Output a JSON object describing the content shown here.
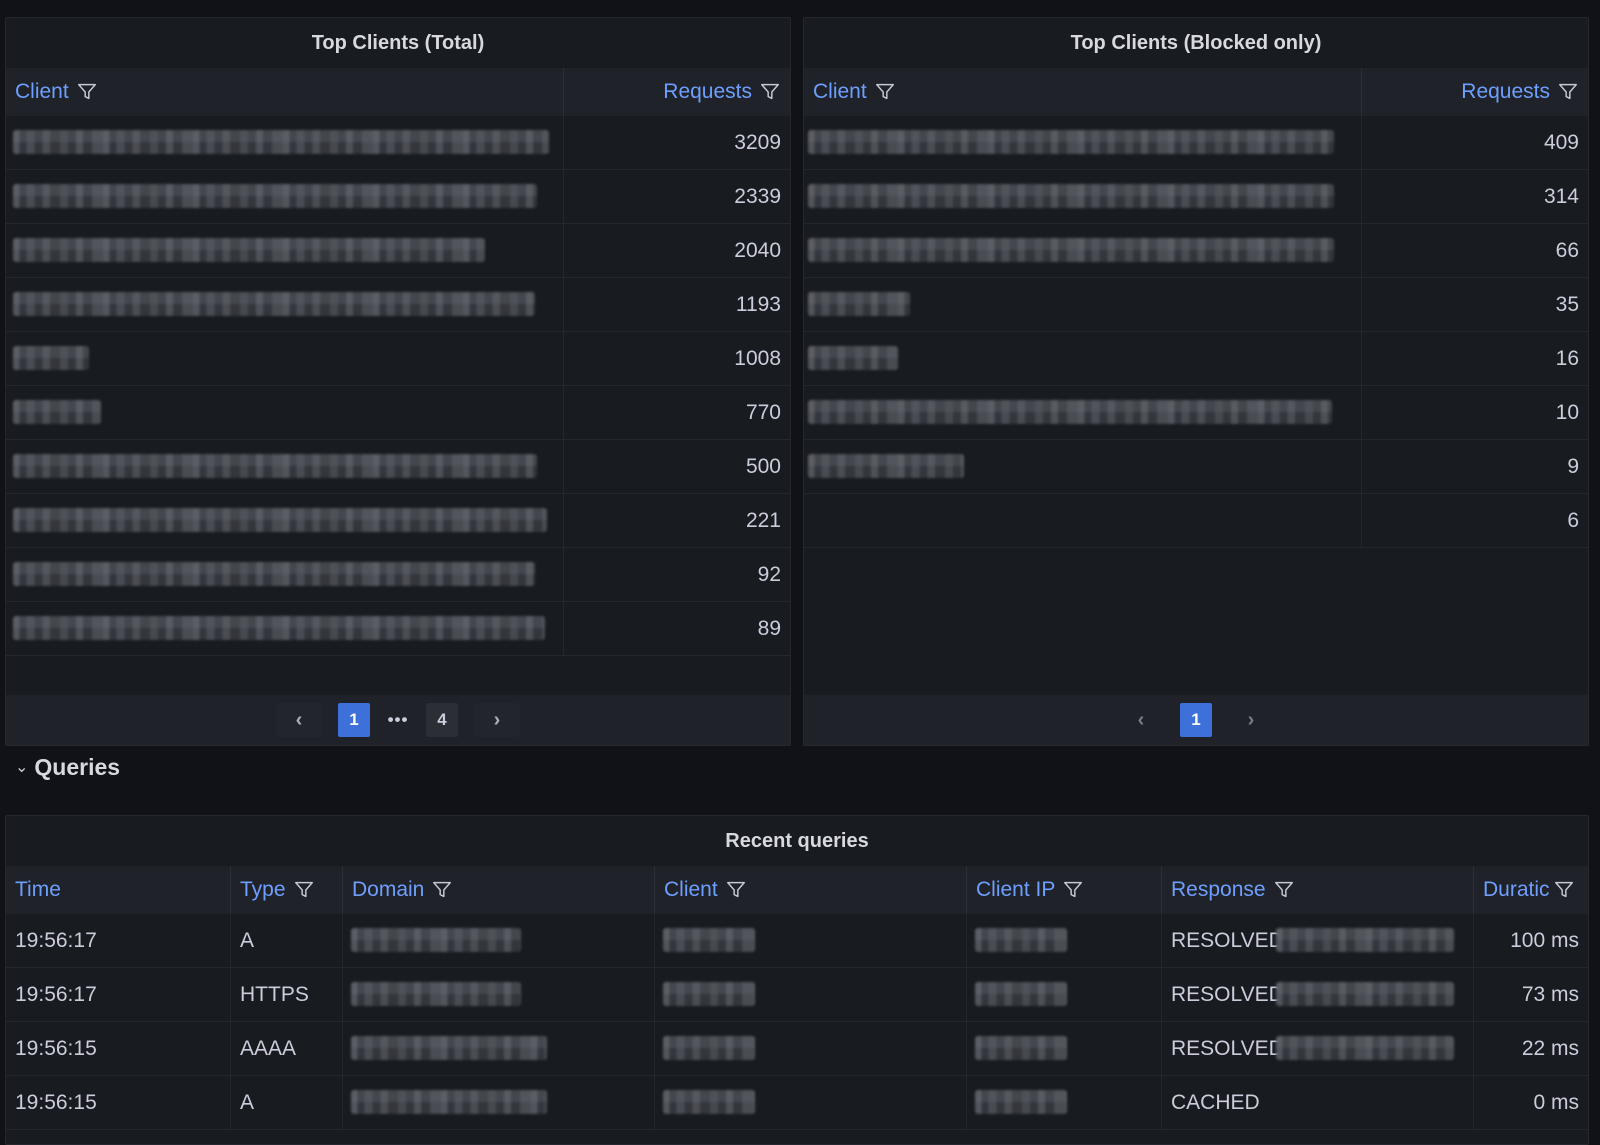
{
  "top_clients_total": {
    "title": "Top Clients (Total)",
    "columns": [
      "Client",
      "Requests"
    ],
    "rows": [
      {
        "requests": "3209"
      },
      {
        "requests": "2339"
      },
      {
        "requests": "2040"
      },
      {
        "requests": "1193"
      },
      {
        "requests": "1008"
      },
      {
        "requests": "770"
      },
      {
        "requests": "500"
      },
      {
        "requests": "221"
      },
      {
        "requests": "92"
      },
      {
        "requests": "89"
      }
    ],
    "pagination": {
      "prev": "‹",
      "current": "1",
      "ellipsis": "•••",
      "last": "4",
      "next": "›"
    }
  },
  "top_clients_blocked": {
    "title": "Top Clients (Blocked only)",
    "columns": [
      "Client",
      "Requests"
    ],
    "rows": [
      {
        "requests": "409"
      },
      {
        "requests": "314"
      },
      {
        "requests": "66"
      },
      {
        "requests": "35"
      },
      {
        "requests": "16"
      },
      {
        "requests": "10"
      },
      {
        "requests": "9"
      },
      {
        "requests": "6"
      }
    ],
    "pagination": {
      "prev": "‹",
      "current": "1",
      "next": "›"
    }
  },
  "section": {
    "chevron": "⌄",
    "title": "Queries"
  },
  "recent_queries": {
    "title": "Recent queries",
    "columns": [
      "Time",
      "Type",
      "Domain",
      "Client",
      "Client IP",
      "Response",
      "Duratic"
    ],
    "rows": [
      {
        "time": "19:56:17",
        "type": "A",
        "response": "RESOLVED",
        "duration": "100 ms"
      },
      {
        "time": "19:56:17",
        "type": "HTTPS",
        "response": "RESOLVED",
        "duration": "73 ms"
      },
      {
        "time": "19:56:15",
        "type": "AAAA",
        "response": "RESOLVED",
        "duration": "22 ms"
      },
      {
        "time": "19:56:15",
        "type": "A",
        "response": "CACHED",
        "duration": "0 ms"
      }
    ]
  },
  "icons": {
    "filter": "funnel-icon",
    "expand": "chevron-down-icon"
  },
  "colors": {
    "background": "#111217",
    "panel": "#181b1f",
    "header_link": "#6e9fff",
    "active_page": "#3d71d9"
  }
}
